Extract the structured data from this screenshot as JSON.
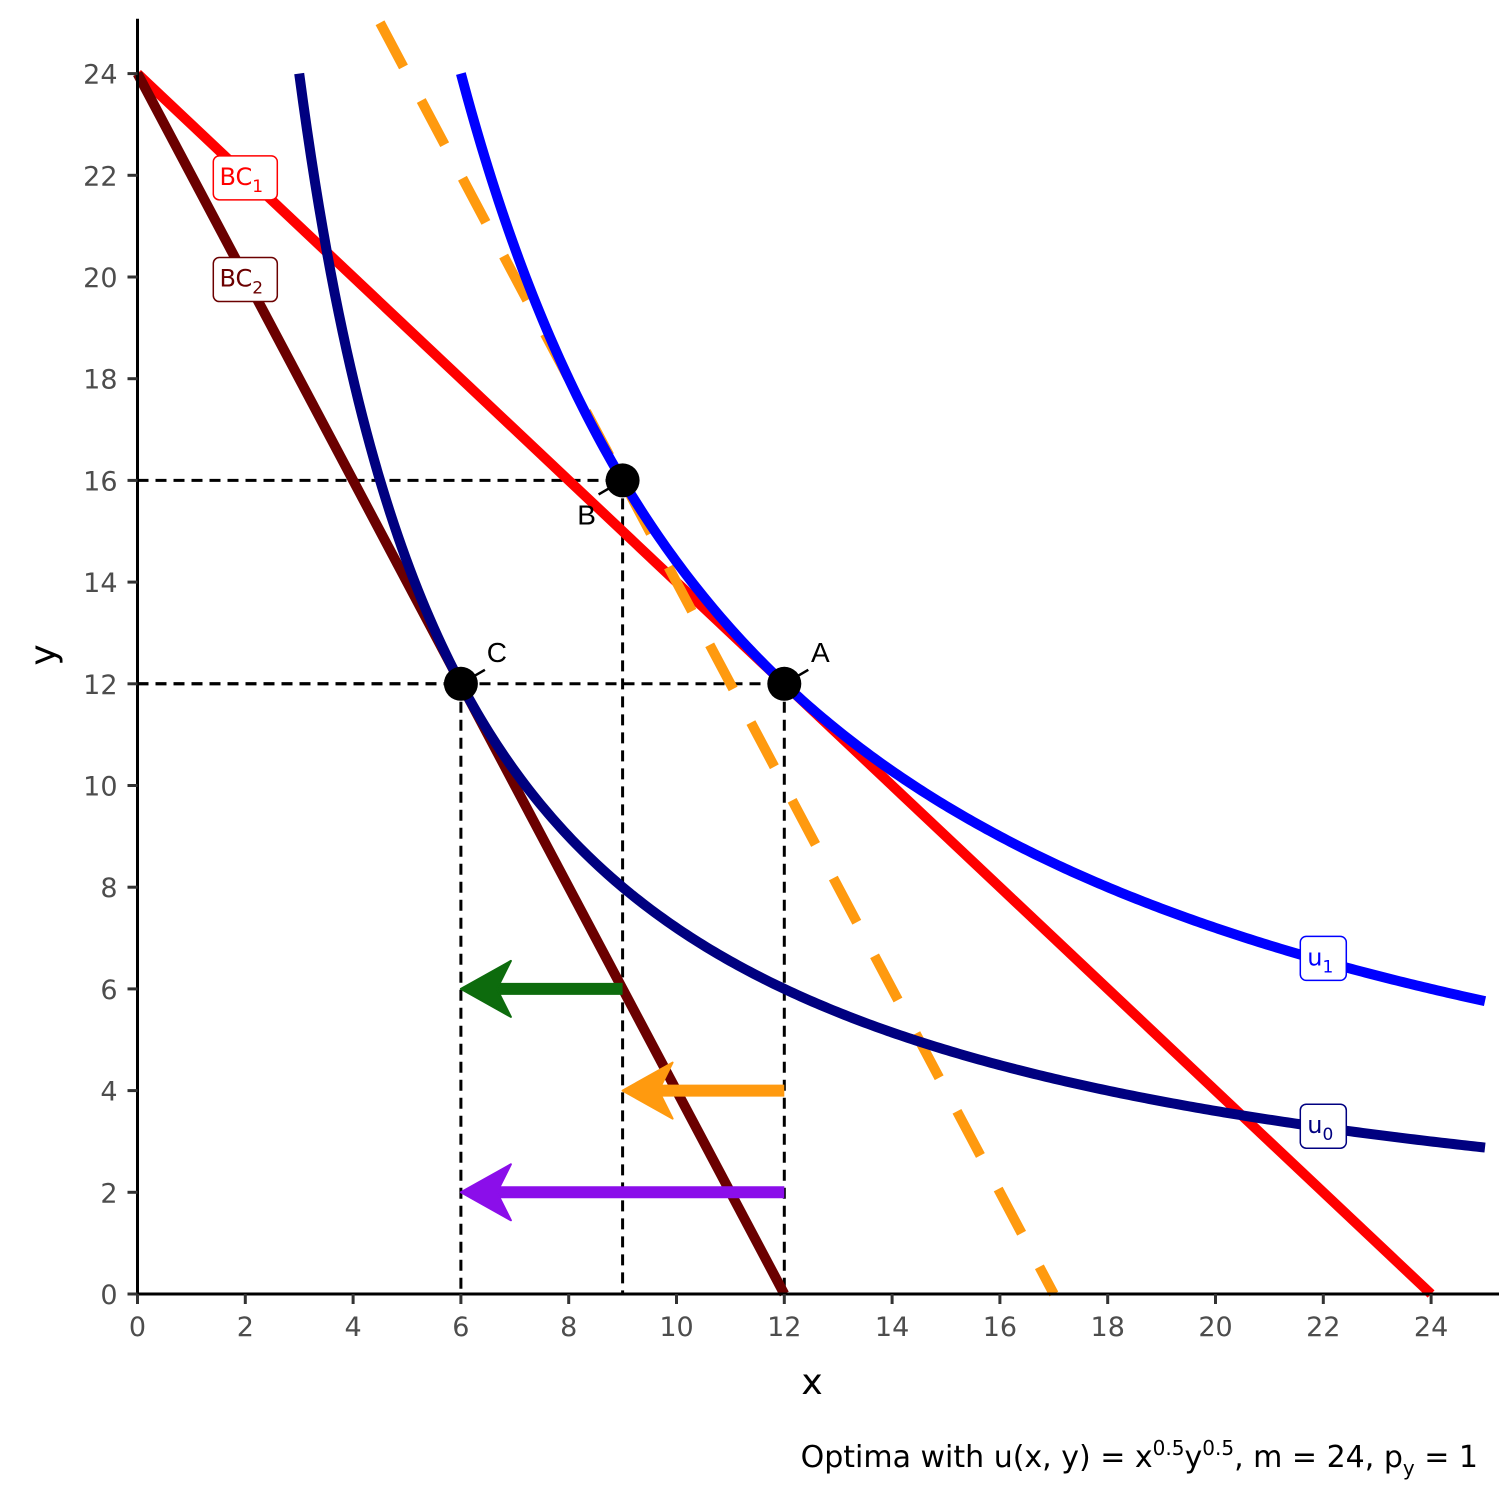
{
  "chart_data": {
    "type": "line",
    "xlabel": "x",
    "ylabel": "y",
    "xlim": [
      0,
      25
    ],
    "ylim": [
      0,
      25
    ],
    "x_ticks": [
      0,
      2,
      4,
      6,
      8,
      10,
      12,
      14,
      16,
      18,
      20,
      22,
      24
    ],
    "y_ticks": [
      0,
      2,
      4,
      6,
      8,
      10,
      12,
      14,
      16,
      18,
      20,
      22,
      24
    ],
    "grid": false,
    "series": [
      {
        "name": "BC1",
        "label_main": "BC",
        "label_sub": "1",
        "kind": "line",
        "color": "#ff0000",
        "x": [
          0,
          24
        ],
        "y": [
          24,
          0
        ]
      },
      {
        "name": "BC2",
        "label_main": "BC",
        "label_sub": "2",
        "kind": "line",
        "color": "#6b0000",
        "x": [
          0,
          12
        ],
        "y": [
          24,
          0
        ]
      },
      {
        "name": "",
        "kind": "line-dashed",
        "color": "#ff9a0f",
        "x": [
          4.5,
          17
        ],
        "y": [
          25,
          0
        ]
      },
      {
        "name": "u1",
        "label_main": "u",
        "label_sub": "1",
        "kind": "curve",
        "color": "#0000ff",
        "k": 144,
        "x_range": [
          6,
          25
        ]
      },
      {
        "name": "u0",
        "label_main": "u",
        "label_sub": "0",
        "kind": "curve",
        "color": "#000080",
        "k": 72,
        "x_range": [
          3,
          25
        ]
      }
    ],
    "points": [
      {
        "label": "A",
        "x": 12,
        "y": 12
      },
      {
        "label": "B",
        "x": 9,
        "y": 16
      },
      {
        "label": "C",
        "x": 6,
        "y": 12
      }
    ],
    "guides": [
      {
        "x": 9,
        "y": 16
      },
      {
        "x": 12,
        "y": 12
      },
      {
        "x": 6,
        "y": 12
      }
    ],
    "arrows": [
      {
        "color": "#0d6b0d",
        "y": 6,
        "x_from": 9,
        "x_to": 6
      },
      {
        "color": "#ff9a0f",
        "y": 4,
        "x_from": 12,
        "x_to": 9
      },
      {
        "color": "#8b0eea",
        "y": 2,
        "x_from": 12,
        "x_to": 6
      }
    ],
    "caption": {
      "prefix": "Optima with u(x, y) = x",
      "exp1": "0.5",
      "mid": "y",
      "exp2": "0.5",
      "after": ", m = 24, p",
      "sub": "y",
      "end": " = 1"
    }
  }
}
